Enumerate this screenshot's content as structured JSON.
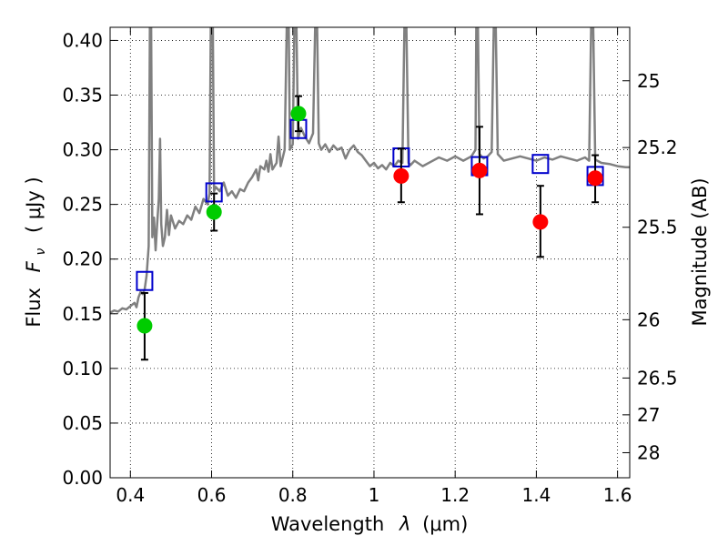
{
  "chart_data": {
    "type": "scatter",
    "xlabel_text": "Wavelength",
    "xlabel_symbol": "λ",
    "xlabel_unit": "(μm)",
    "ylabel_text": "Flux",
    "ylabel_symbol": "F",
    "ylabel_subscript": "ν",
    "ylabel_unit": "( μJy )",
    "y2label": "Magnitude (AB)",
    "xlim": [
      0.35,
      1.63
    ],
    "ylim": [
      0.0,
      0.412
    ],
    "grid": true,
    "xticks": [
      {
        "value": 0.4,
        "label": "0.4"
      },
      {
        "value": 0.6,
        "label": "0.6"
      },
      {
        "value": 0.8,
        "label": "0.8"
      },
      {
        "value": 1.0,
        "label": "1"
      },
      {
        "value": 1.2,
        "label": "1.2"
      },
      {
        "value": 1.4,
        "label": "1.4"
      },
      {
        "value": 1.6,
        "label": "1.6"
      }
    ],
    "yticks": [
      {
        "value": 0.0,
        "label": "0.00"
      },
      {
        "value": 0.05,
        "label": "0.05"
      },
      {
        "value": 0.1,
        "label": "0.10"
      },
      {
        "value": 0.15,
        "label": "0.15"
      },
      {
        "value": 0.2,
        "label": "0.20"
      },
      {
        "value": 0.25,
        "label": "0.25"
      },
      {
        "value": 0.3,
        "label": "0.30"
      },
      {
        "value": 0.35,
        "label": "0.35"
      },
      {
        "value": 0.4,
        "label": "0.40"
      }
    ],
    "mag_ticks": [
      {
        "mag": 25,
        "label": "25"
      },
      {
        "mag": 25.2,
        "label": "25.2"
      },
      {
        "mag": 25.5,
        "label": "25.5"
      },
      {
        "mag": 26,
        "label": "26"
      },
      {
        "mag": 26.5,
        "label": "26.5"
      },
      {
        "mag": 27,
        "label": "27"
      },
      {
        "mag": 28,
        "label": "28"
      }
    ],
    "series": [
      {
        "name": "model-spectrum",
        "type": "line",
        "color": "#808080",
        "points": [
          [
            0.35,
            0.151
          ],
          [
            0.36,
            0.153
          ],
          [
            0.37,
            0.152
          ],
          [
            0.38,
            0.155
          ],
          [
            0.39,
            0.154
          ],
          [
            0.4,
            0.157
          ],
          [
            0.41,
            0.16
          ],
          [
            0.415,
            0.156
          ],
          [
            0.42,
            0.165
          ],
          [
            0.425,
            0.17
          ],
          [
            0.43,
            0.168
          ],
          [
            0.435,
            0.172
          ],
          [
            0.44,
            0.185
          ],
          [
            0.445,
            0.212
          ],
          [
            0.448,
            0.412
          ],
          [
            0.451,
            0.412
          ],
          [
            0.454,
            0.22
          ],
          [
            0.458,
            0.238
          ],
          [
            0.462,
            0.208
          ],
          [
            0.466,
            0.232
          ],
          [
            0.47,
            0.255
          ],
          [
            0.473,
            0.31
          ],
          [
            0.476,
            0.232
          ],
          [
            0.48,
            0.212
          ],
          [
            0.485,
            0.22
          ],
          [
            0.49,
            0.245
          ],
          [
            0.495,
            0.222
          ],
          [
            0.5,
            0.24
          ],
          [
            0.51,
            0.228
          ],
          [
            0.52,
            0.235
          ],
          [
            0.53,
            0.232
          ],
          [
            0.54,
            0.24
          ],
          [
            0.55,
            0.236
          ],
          [
            0.56,
            0.248
          ],
          [
            0.57,
            0.242
          ],
          [
            0.58,
            0.255
          ],
          [
            0.59,
            0.25
          ],
          [
            0.595,
            0.26
          ],
          [
            0.598,
            0.412
          ],
          [
            0.603,
            0.412
          ],
          [
            0.606,
            0.262
          ],
          [
            0.61,
            0.266
          ],
          [
            0.62,
            0.262
          ],
          [
            0.63,
            0.27
          ],
          [
            0.64,
            0.258
          ],
          [
            0.65,
            0.262
          ],
          [
            0.66,
            0.256
          ],
          [
            0.67,
            0.264
          ],
          [
            0.68,
            0.262
          ],
          [
            0.69,
            0.27
          ],
          [
            0.7,
            0.275
          ],
          [
            0.71,
            0.282
          ],
          [
            0.715,
            0.272
          ],
          [
            0.72,
            0.285
          ],
          [
            0.73,
            0.282
          ],
          [
            0.735,
            0.29
          ],
          [
            0.74,
            0.28
          ],
          [
            0.745,
            0.296
          ],
          [
            0.75,
            0.282
          ],
          [
            0.76,
            0.288
          ],
          [
            0.765,
            0.312
          ],
          [
            0.77,
            0.285
          ],
          [
            0.78,
            0.3
          ],
          [
            0.785,
            0.412
          ],
          [
            0.79,
            0.412
          ],
          [
            0.793,
            0.3
          ],
          [
            0.8,
            0.305
          ],
          [
            0.804,
            0.412
          ],
          [
            0.809,
            0.412
          ],
          [
            0.813,
            0.31
          ],
          [
            0.82,
            0.32
          ],
          [
            0.83,
            0.312
          ],
          [
            0.84,
            0.306
          ],
          [
            0.85,
            0.315
          ],
          [
            0.855,
            0.412
          ],
          [
            0.86,
            0.412
          ],
          [
            0.864,
            0.306
          ],
          [
            0.87,
            0.3
          ],
          [
            0.88,
            0.305
          ],
          [
            0.89,
            0.298
          ],
          [
            0.9,
            0.304
          ],
          [
            0.91,
            0.3
          ],
          [
            0.92,
            0.302
          ],
          [
            0.93,
            0.292
          ],
          [
            0.94,
            0.3
          ],
          [
            0.95,
            0.304
          ],
          [
            0.96,
            0.298
          ],
          [
            0.97,
            0.295
          ],
          [
            0.98,
            0.29
          ],
          [
            0.99,
            0.285
          ],
          [
            1.0,
            0.288
          ],
          [
            1.01,
            0.283
          ],
          [
            1.02,
            0.286
          ],
          [
            1.03,
            0.282
          ],
          [
            1.04,
            0.288
          ],
          [
            1.05,
            0.285
          ],
          [
            1.06,
            0.29
          ],
          [
            1.07,
            0.288
          ],
          [
            1.075,
            0.412
          ],
          [
            1.08,
            0.412
          ],
          [
            1.085,
            0.288
          ],
          [
            1.09,
            0.286
          ],
          [
            1.1,
            0.29
          ],
          [
            1.12,
            0.285
          ],
          [
            1.14,
            0.289
          ],
          [
            1.16,
            0.293
          ],
          [
            1.18,
            0.29
          ],
          [
            1.2,
            0.294
          ],
          [
            1.22,
            0.29
          ],
          [
            1.24,
            0.294
          ],
          [
            1.25,
            0.3
          ],
          [
            1.252,
            0.412
          ],
          [
            1.256,
            0.412
          ],
          [
            1.26,
            0.296
          ],
          [
            1.27,
            0.292
          ],
          [
            1.28,
            0.294
          ],
          [
            1.29,
            0.298
          ],
          [
            1.295,
            0.412
          ],
          [
            1.3,
            0.412
          ],
          [
            1.305,
            0.296
          ],
          [
            1.32,
            0.29
          ],
          [
            1.34,
            0.292
          ],
          [
            1.36,
            0.294
          ],
          [
            1.38,
            0.292
          ],
          [
            1.4,
            0.29
          ],
          [
            1.42,
            0.293
          ],
          [
            1.44,
            0.291
          ],
          [
            1.46,
            0.294
          ],
          [
            1.48,
            0.292
          ],
          [
            1.5,
            0.29
          ],
          [
            1.52,
            0.293
          ],
          [
            1.53,
            0.29
          ],
          [
            1.535,
            0.412
          ],
          [
            1.54,
            0.412
          ],
          [
            1.545,
            0.291
          ],
          [
            1.56,
            0.288
          ],
          [
            1.58,
            0.287
          ],
          [
            1.6,
            0.285
          ],
          [
            1.62,
            0.284
          ],
          [
            1.63,
            0.284
          ]
        ]
      },
      {
        "name": "model-synthetic-photometry",
        "type": "scatter",
        "marker": "open-square",
        "color": "#0000cc",
        "points": [
          [
            0.435,
            0.18
          ],
          [
            0.606,
            0.261
          ],
          [
            0.814,
            0.319
          ],
          [
            1.067,
            0.293
          ],
          [
            1.26,
            0.285
          ],
          [
            1.41,
            0.287
          ],
          [
            1.545,
            0.276
          ]
        ]
      },
      {
        "name": "observed-optical",
        "type": "scatter",
        "marker": "filled-circle",
        "color": "#00cc00",
        "points": [
          {
            "x": 0.435,
            "y": 0.139,
            "yerr": [
              0.108,
              0.169
            ]
          },
          {
            "x": 0.606,
            "y": 0.243,
            "yerr": [
              0.226,
              0.26
            ]
          },
          {
            "x": 0.814,
            "y": 0.333,
            "yerr": [
              0.317,
              0.349
            ]
          }
        ]
      },
      {
        "name": "observed-infrared",
        "type": "scatter",
        "marker": "filled-circle",
        "color": "#ff0000",
        "points": [
          {
            "x": 1.067,
            "y": 0.276,
            "yerr": [
              0.252,
              0.301
            ]
          },
          {
            "x": 1.26,
            "y": 0.281,
            "yerr": [
              0.241,
              0.321
            ]
          },
          {
            "x": 1.41,
            "y": 0.234,
            "yerr": [
              0.202,
              0.267
            ]
          },
          {
            "x": 1.545,
            "y": 0.274,
            "yerr": [
              0.252,
              0.295
            ]
          }
        ]
      }
    ]
  }
}
